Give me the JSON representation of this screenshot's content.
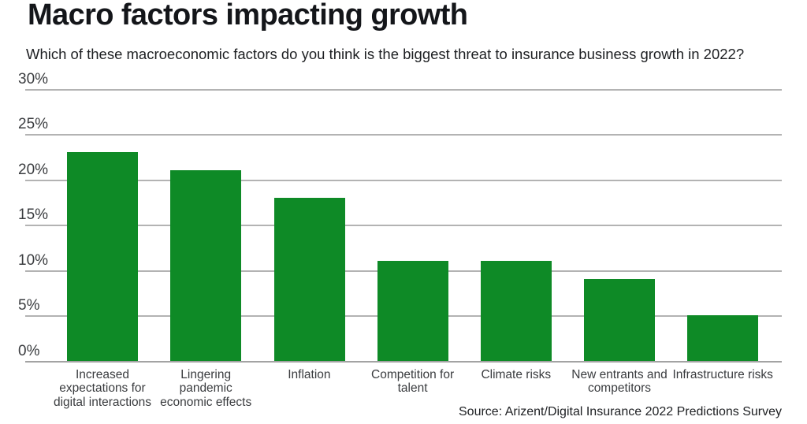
{
  "header": {
    "title": "Macro factors impacting growth",
    "subtitle": "Which of these macroeconomic factors do you think is the biggest threat to insurance business growth in 2022?"
  },
  "source_note": "Source: Arizent/Digital Insurance 2022 Predictions Survey",
  "colors": {
    "bar": "#0e8a26",
    "gridline": "#b3b3b3",
    "baseline": "#a3a3a3",
    "title_text": "#14161a",
    "axis_text": "#3b3d40"
  },
  "chart_data": {
    "type": "bar",
    "title": "Macro factors impacting growth",
    "subtitle": "Which of these macroeconomic factors do you think is the biggest threat to insurance business growth in 2022?",
    "categories": [
      "Increased expectations for digital interactions",
      "Lingering pandemic economic effects",
      "Inflation",
      "Competition for talent",
      "Climate risks",
      "New entrants and competitors",
      "Infrastructure risks"
    ],
    "values": [
      23,
      21,
      18,
      11,
      11,
      9,
      5
    ],
    "unit": "%",
    "xlabel": "",
    "ylabel": "",
    "ylim": [
      0,
      30
    ],
    "ytick_interval": 5,
    "ytick_labels": [
      "0%",
      "5%",
      "10%",
      "15%",
      "20%",
      "25%",
      "30%"
    ],
    "grid": true,
    "legend": false,
    "bar_color": "#0e8a26"
  }
}
